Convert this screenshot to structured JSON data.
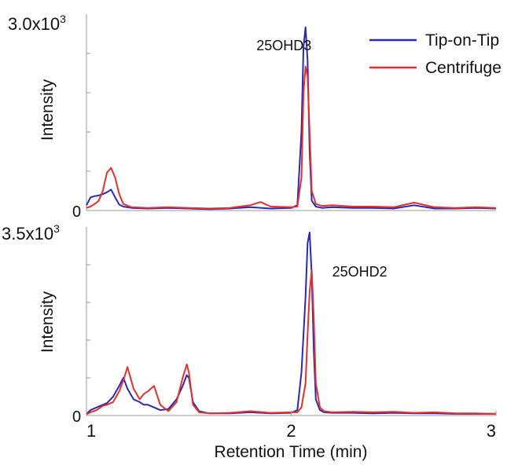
{
  "chart_data": [
    {
      "type": "line",
      "panel": "top",
      "ylabel": "Intensity",
      "ylim": [
        0,
        3000
      ],
      "xlim": [
        1,
        3
      ],
      "ytick_top_label_base": "3.0x10",
      "ytick_top_label_exp": "3",
      "ytick_zero_label": "0",
      "annotation": {
        "text": "25OHD3",
        "x": 1.83,
        "y": 2450
      },
      "legend": {
        "placement": "top-right",
        "entries": [
          {
            "name": "Tip-on-Tip",
            "color": "#2a2ab0"
          },
          {
            "name": "Centrifuge",
            "color": "#e03030"
          }
        ]
      },
      "series": [
        {
          "name": "Tip-on-Tip",
          "color": "#2a2ab0",
          "x": [
            1.0,
            1.02,
            1.04,
            1.06,
            1.08,
            1.1,
            1.12,
            1.14,
            1.16,
            1.18,
            1.22,
            1.3,
            1.4,
            1.5,
            1.6,
            1.7,
            1.8,
            1.9,
            2.0,
            2.03,
            2.05,
            2.06,
            2.07,
            2.08,
            2.09,
            2.1,
            2.12,
            2.15,
            2.2,
            2.3,
            2.4,
            2.5,
            2.6,
            2.7,
            2.8,
            2.9,
            3.0
          ],
          "values": [
            80,
            200,
            220,
            230,
            250,
            280,
            320,
            200,
            90,
            60,
            40,
            30,
            40,
            30,
            20,
            30,
            50,
            30,
            40,
            80,
            1200,
            2500,
            2800,
            2300,
            900,
            150,
            60,
            40,
            50,
            40,
            40,
            30,
            80,
            30,
            30,
            40,
            30
          ]
        },
        {
          "name": "Centrifuge",
          "color": "#e03030",
          "x": [
            1.0,
            1.02,
            1.04,
            1.06,
            1.08,
            1.1,
            1.12,
            1.14,
            1.16,
            1.18,
            1.22,
            1.3,
            1.4,
            1.5,
            1.6,
            1.7,
            1.8,
            1.85,
            1.9,
            2.0,
            2.03,
            2.05,
            2.06,
            2.07,
            2.08,
            2.09,
            2.1,
            2.12,
            2.15,
            2.2,
            2.3,
            2.4,
            2.5,
            2.6,
            2.7,
            2.8,
            2.9,
            3.0
          ],
          "values": [
            40,
            60,
            100,
            150,
            300,
            580,
            650,
            500,
            250,
            100,
            50,
            40,
            50,
            40,
            30,
            40,
            80,
            130,
            60,
            50,
            60,
            500,
            1800,
            2200,
            2050,
            1200,
            300,
            100,
            70,
            80,
            60,
            60,
            50,
            120,
            50,
            40,
            50,
            40
          ]
        }
      ]
    },
    {
      "type": "line",
      "panel": "bottom",
      "xlabel": "Retention Time (min)",
      "ylabel": "Intensity",
      "ylim": [
        0,
        3500
      ],
      "xlim": [
        1,
        3
      ],
      "xticks": [
        1,
        2,
        3
      ],
      "xtick_labels": [
        "1",
        "2",
        "3"
      ],
      "ytick_top_label_base": "3.5x10",
      "ytick_top_label_exp": "3",
      "ytick_zero_label": "0",
      "annotation": {
        "text": "25OHD2",
        "x": 2.2,
        "y": 2580
      },
      "series": [
        {
          "name": "Tip-on-Tip",
          "color": "#2a2ab0",
          "x": [
            1.0,
            1.02,
            1.05,
            1.08,
            1.1,
            1.13,
            1.16,
            1.18,
            1.2,
            1.23,
            1.26,
            1.28,
            1.3,
            1.33,
            1.36,
            1.4,
            1.44,
            1.47,
            1.49,
            1.5,
            1.52,
            1.55,
            1.6,
            1.7,
            1.8,
            1.9,
            2.0,
            2.03,
            2.05,
            2.07,
            2.08,
            2.09,
            2.1,
            2.11,
            2.12,
            2.14,
            2.16,
            2.2,
            2.3,
            2.4,
            2.5,
            2.6,
            2.7,
            2.8,
            2.9,
            3.0
          ],
          "values": [
            30,
            100,
            150,
            200,
            230,
            350,
            550,
            700,
            500,
            300,
            250,
            200,
            200,
            150,
            100,
            120,
            300,
            550,
            750,
            700,
            250,
            80,
            40,
            40,
            60,
            40,
            50,
            100,
            800,
            2200,
            3200,
            3400,
            2600,
            1200,
            300,
            100,
            60,
            50,
            50,
            40,
            50,
            40,
            40,
            30,
            30,
            30
          ]
        },
        {
          "name": "Centrifuge",
          "color": "#e03030",
          "x": [
            1.0,
            1.02,
            1.05,
            1.08,
            1.1,
            1.13,
            1.16,
            1.18,
            1.2,
            1.23,
            1.26,
            1.28,
            1.3,
            1.33,
            1.36,
            1.4,
            1.44,
            1.47,
            1.49,
            1.5,
            1.52,
            1.55,
            1.6,
            1.7,
            1.8,
            1.9,
            2.0,
            2.03,
            2.05,
            2.07,
            2.08,
            2.09,
            2.1,
            2.11,
            2.12,
            2.14,
            2.16,
            2.2,
            2.3,
            2.4,
            2.5,
            2.6,
            2.7,
            2.8,
            2.9,
            3.0
          ],
          "values": [
            20,
            60,
            100,
            180,
            200,
            250,
            450,
            650,
            900,
            500,
            300,
            400,
            450,
            550,
            200,
            80,
            250,
            700,
            950,
            800,
            200,
            60,
            40,
            50,
            80,
            50,
            60,
            60,
            150,
            600,
            1500,
            2300,
            2700,
            1800,
            600,
            150,
            80,
            60,
            70,
            60,
            70,
            50,
            60,
            40,
            40,
            30
          ]
        }
      ]
    }
  ]
}
